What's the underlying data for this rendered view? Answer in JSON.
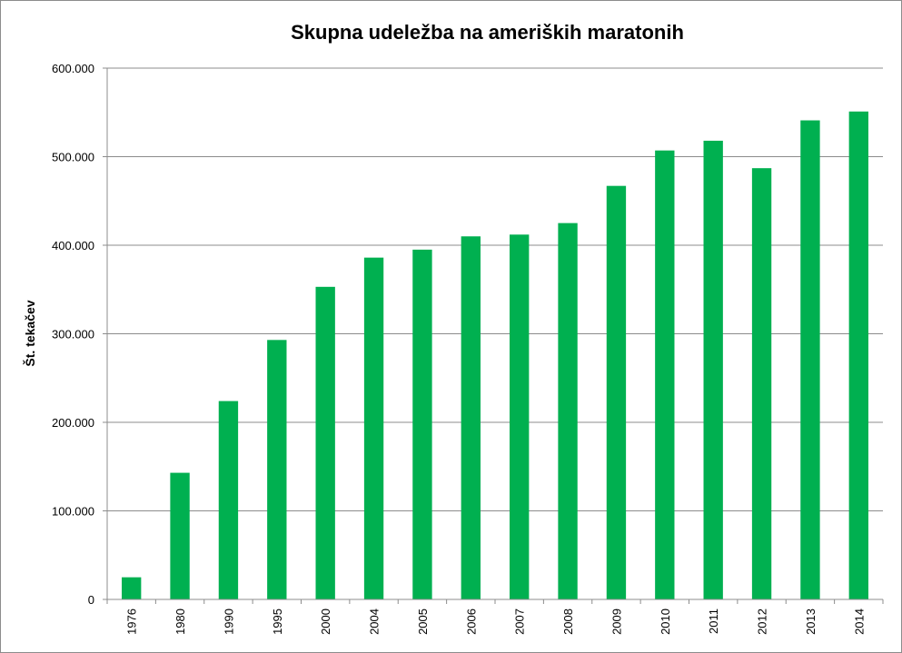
{
  "chart_data": {
    "type": "bar",
    "title": "Skupna udeležba na ameriških maratonih",
    "xlabel": "",
    "ylabel": "Št. tekačev",
    "ylim": [
      0,
      600000
    ],
    "yticks": [
      0,
      100000,
      200000,
      300000,
      400000,
      500000,
      600000
    ],
    "ytick_labels": [
      "0",
      "100.000",
      "200.000",
      "300.000",
      "400.000",
      "500.000",
      "600.000"
    ],
    "grid": true,
    "legend": "none",
    "bar_color": "#00b050",
    "categories": [
      "1976",
      "1980",
      "1990",
      "1995",
      "2000",
      "2004",
      "2005",
      "2006",
      "2007",
      "2008",
      "2009",
      "2010",
      "2011",
      "2012",
      "2013",
      "2014"
    ],
    "values": [
      25000,
      143000,
      224000,
      293000,
      353000,
      386000,
      395000,
      410000,
      412000,
      425000,
      467000,
      507000,
      518000,
      487000,
      541000,
      551000
    ]
  }
}
